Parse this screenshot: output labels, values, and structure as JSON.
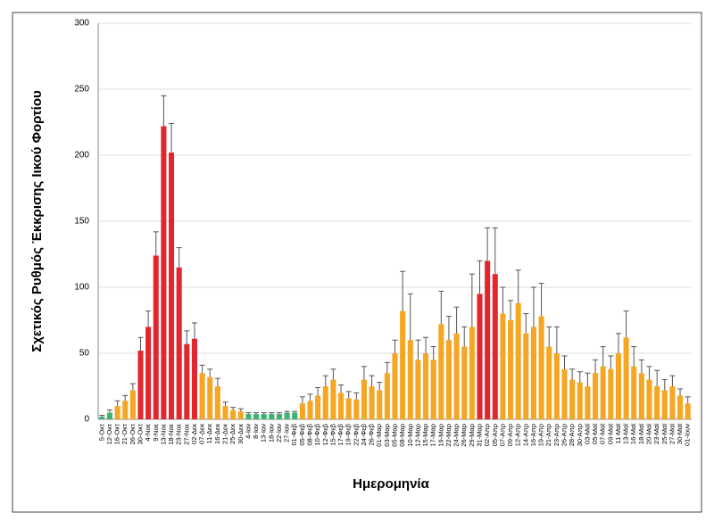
{
  "chart_data": {
    "type": "bar",
    "y_label": "Σχετικός Ρυθμός Έκκρισης Ιικού Φορτίου",
    "x_label": "Ημερομηνία",
    "categories": [
      "5-Οκτ",
      "12-Οκτ",
      "16-Οκτ",
      "21-Οκτ",
      "26-Οκτ",
      "30-Οκτ",
      "4-Νοε",
      "9-Νοε",
      "13-Νοε",
      "18-Νοε",
      "23-Νοε",
      "27-Νοε",
      "02-Δεκ",
      "07-Δεκ",
      "11-Δεκ",
      "16-Δεκ",
      "21-Δεκ",
      "25-Δεκ",
      "30-Δεκ",
      "4-Ιαν",
      "8-Ιαν",
      "13-Ιαν",
      "18-Ιαν",
      "22-Ιαν",
      "27-Ιαν",
      "01-Φεβ",
      "05-Φεβ",
      "08-Φεβ",
      "10-Φεβ",
      "12-Φεβ",
      "15-Φεβ",
      "17-Φεβ",
      "19-Φεβ",
      "22-Φεβ",
      "24-Φεβ",
      "26-Φεβ",
      "01-Μαρ",
      "03-Μαρ",
      "05-Μαρ",
      "08-Μαρ",
      "10-Μαρ",
      "12-Μαρ",
      "15-Μαρ",
      "17-Μαρ",
      "19-Μαρ",
      "22-Μαρ",
      "24-Μαρ",
      "26-Μαρ",
      "29-Μαρ",
      "31-Μαρ",
      "02-Απρ",
      "05-Απρ",
      "07-Απρ",
      "09-Απρ",
      "12-Απρ",
      "14-Απρ",
      "16-Απρ",
      "19-Απρ",
      "21-Απρ",
      "23-Απρ",
      "26-Απρ",
      "28-Απρ",
      "30-Απρ",
      "03-Μαϊ",
      "05-Μαϊ",
      "07-Μαϊ",
      "09-Μαϊ",
      "11-Μαϊ",
      "13-Μαϊ",
      "16-Μαϊ",
      "18-Μαϊ",
      "20-Μαϊ",
      "23-Μαϊ",
      "25-Μαϊ",
      "27-Μαϊ",
      "30-Μαϊ",
      "01-Ιουν"
    ],
    "values": [
      2,
      5,
      10,
      14,
      22,
      52,
      70,
      124,
      222,
      202,
      115,
      57,
      61,
      35,
      32,
      25,
      10,
      7,
      6,
      4,
      4,
      4,
      4,
      4,
      5,
      5,
      12,
      14,
      18,
      25,
      30,
      20,
      16,
      15,
      30,
      25,
      22,
      35,
      50,
      82,
      60,
      45,
      50,
      45,
      72,
      60,
      65,
      55,
      70,
      95,
      120,
      110,
      80,
      75,
      88,
      65,
      70,
      78,
      55,
      50,
      38,
      30,
      28,
      25,
      35,
      40,
      38,
      50,
      62,
      40,
      35,
      30,
      25,
      22,
      25,
      18,
      12
    ],
    "errors": [
      1,
      2,
      4,
      4,
      5,
      10,
      12,
      18,
      23,
      22,
      15,
      10,
      12,
      6,
      6,
      6,
      3,
      2,
      2,
      1,
      1,
      1,
      1,
      1,
      1,
      1,
      5,
      5,
      6,
      8,
      8,
      6,
      5,
      5,
      10,
      8,
      6,
      8,
      10,
      30,
      35,
      15,
      12,
      10,
      25,
      18,
      20,
      15,
      40,
      25,
      25,
      35,
      20,
      15,
      25,
      15,
      30,
      25,
      15,
      20,
      10,
      8,
      8,
      10,
      10,
      15,
      10,
      15,
      20,
      15,
      10,
      10,
      12,
      8,
      8,
      5,
      5
    ],
    "colors": [
      "#3cb371",
      "#3cb371",
      "#f5a623",
      "#f5a623",
      "#f5a623",
      "#e3262d",
      "#e3262d",
      "#e3262d",
      "#e3262d",
      "#e3262d",
      "#e3262d",
      "#e3262d",
      "#e3262d",
      "#f5a623",
      "#f5a623",
      "#f5a623",
      "#f5a623",
      "#f5a623",
      "#f5a623",
      "#3cb371",
      "#3cb371",
      "#3cb371",
      "#3cb371",
      "#3cb371",
      "#3cb371",
      "#3cb371",
      "#f5a623",
      "#f5a623",
      "#f5a623",
      "#f5a623",
      "#f5a623",
      "#f5a623",
      "#f5a623",
      "#f5a623",
      "#f5a623",
      "#f5a623",
      "#f5a623",
      "#f5a623",
      "#f5a623",
      "#f5a623",
      "#f5a623",
      "#f5a623",
      "#f5a623",
      "#f5a623",
      "#f5a623",
      "#f5a623",
      "#f5a623",
      "#f5a623",
      "#f5a623",
      "#e3262d",
      "#e3262d",
      "#e3262d",
      "#f5a623",
      "#f5a623",
      "#f5a623",
      "#f5a623",
      "#f5a623",
      "#f5a623",
      "#f5a623",
      "#f5a623",
      "#f5a623",
      "#f5a623",
      "#f5a623",
      "#f5a623",
      "#f5a623",
      "#f5a623",
      "#f5a623",
      "#f5a623",
      "#f5a623",
      "#f5a623",
      "#f5a623",
      "#f5a623",
      "#f5a623",
      "#f5a623",
      "#f5a623",
      "#f5a623",
      "#f5a623"
    ],
    "ylim": [
      0,
      300
    ],
    "yticks": [
      0,
      50,
      100,
      150,
      200,
      250,
      300
    ],
    "grid": true
  }
}
